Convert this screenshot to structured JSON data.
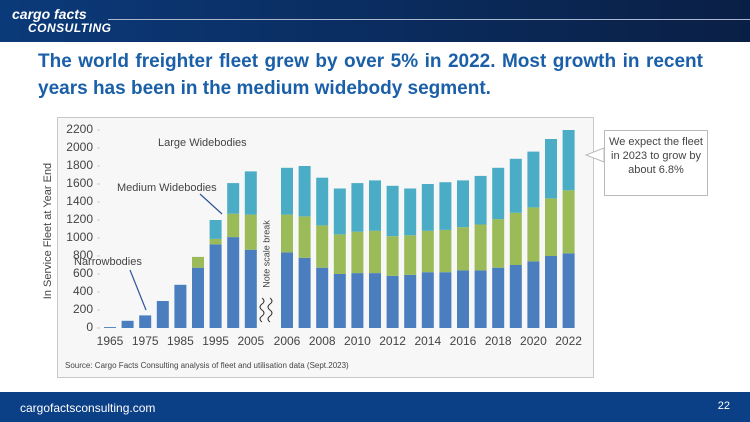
{
  "header": {
    "logo_line1": "cargo facts",
    "logo_line2": "CONSULTING"
  },
  "title": "The world freighter fleet grew by over 5% in 2022. Most growth in recent years has been in the medium widebody segment.",
  "chart_data": {
    "type": "stacked_bar",
    "y_label": "In Service Fleet at Year End",
    "categories": [
      "1965",
      null,
      "1975",
      null,
      "1985",
      null,
      "1995",
      null,
      "2005",
      "2006",
      null,
      "2008",
      null,
      "2010",
      null,
      "2012",
      null,
      "2014",
      null,
      "2016",
      null,
      "2018",
      null,
      "2020",
      null,
      "2022"
    ],
    "series": [
      {
        "name": "Narrowbodies",
        "color": "#4a7ebf",
        "values": [
          10,
          80,
          140,
          300,
          480,
          670,
          930,
          1010,
          870,
          840,
          780,
          670,
          600,
          610,
          610,
          580,
          590,
          620,
          620,
          640,
          640,
          670,
          700,
          740,
          800,
          830
        ]
      },
      {
        "name": "Medium Widebodies",
        "color": "#9bbb59",
        "values": [
          0,
          0,
          0,
          0,
          0,
          120,
          60,
          260,
          390,
          420,
          460,
          470,
          440,
          460,
          470,
          440,
          440,
          460,
          470,
          480,
          510,
          540,
          580,
          600,
          640,
          700
        ]
      },
      {
        "name": "Large Widebodies",
        "color": "#4bacc6",
        "values": [
          0,
          0,
          0,
          0,
          0,
          0,
          210,
          340,
          480,
          520,
          560,
          530,
          510,
          540,
          560,
          560,
          520,
          520,
          530,
          520,
          540,
          570,
          600,
          620,
          660,
          670
        ]
      }
    ],
    "ylim": [
      0,
      2200
    ],
    "yticks": [
      0,
      200,
      400,
      600,
      800,
      1000,
      1200,
      1400,
      1600,
      1800,
      2000,
      2200
    ],
    "scale_break": "Note scale break",
    "callout": "We expect the fleet in 2023 to grow by about 6.8%",
    "source": "Source: Cargo Facts Consulting analysis of fleet and utilisation data (Sept.2023)"
  },
  "footer": {
    "website": "cargofactsconsulting.com",
    "page": 22
  }
}
